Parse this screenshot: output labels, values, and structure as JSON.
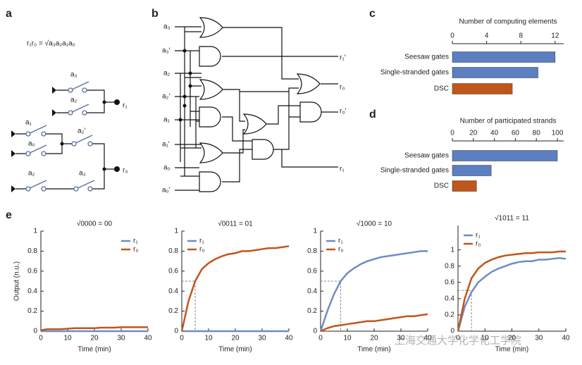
{
  "panel_labels": [
    "a",
    "b",
    "c",
    "d",
    "e"
  ],
  "diagram_a": {
    "equation": "r₁r₀ = √a₃a₂a₁a₀",
    "switches": [
      "a₃",
      "a₂",
      "a₁",
      "a₂′",
      "a₀",
      "a₂",
      "a₃"
    ],
    "outputs": [
      "r₁",
      "r₀"
    ]
  },
  "diagram_b": {
    "inputs": [
      "a₃",
      "a₃′",
      "a₂",
      "a₂′",
      "a₁",
      "a₁′",
      "a₀",
      "a₀′"
    ],
    "outputs": [
      "r₁′",
      "r₀",
      "r₀′",
      "r₁"
    ]
  },
  "watermark": "上海交通大学化学化工学院",
  "chart_data": [
    {
      "type": "hbar",
      "title": "Number of computing elements",
      "categories": [
        "Seesaw gates",
        "Single-stranded gates",
        "DSC"
      ],
      "values": [
        12,
        10,
        7
      ],
      "colors": [
        "#5b7fc1",
        "#5b7fc1",
        "#c0561c"
      ],
      "xlim": [
        0,
        13
      ],
      "xticks": [
        0,
        4,
        8,
        12
      ]
    },
    {
      "type": "hbar",
      "title": "Number of participated strands",
      "categories": [
        "Seesaw gates",
        "Single-stranded gates",
        "DSC"
      ],
      "values": [
        100,
        37,
        23
      ],
      "colors": [
        "#5b7fc1",
        "#5b7fc1",
        "#c0561c"
      ],
      "xlim": [
        0,
        106
      ],
      "xticks": [
        0,
        20,
        40,
        60,
        80,
        100
      ]
    },
    {
      "type": "line",
      "title": "√0000 = 00",
      "x_label": "Time (min)",
      "y_label": "Output (n.u.)",
      "legend": "upper right",
      "x": [
        0,
        2.5,
        5,
        7.5,
        10,
        12.5,
        15,
        17.5,
        20,
        22.5,
        25,
        27.5,
        30,
        32.5,
        35,
        37.5,
        40
      ],
      "xlim": [
        0,
        40
      ],
      "xticks": [
        0,
        10,
        20,
        30,
        40
      ],
      "ylim": [
        0,
        1.0
      ],
      "yticks": [
        0,
        0.2,
        0.4,
        0.6,
        0.8,
        1.0
      ],
      "series": [
        {
          "name": "r₁",
          "color": "#6f8cc0",
          "values": [
            0,
            0,
            0,
            0,
            0,
            0,
            0,
            0,
            0,
            0,
            0,
            0,
            0,
            0,
            0,
            0,
            0
          ]
        },
        {
          "name": "r₀",
          "color": "#c0561c",
          "values": [
            0.01,
            0.02,
            0.02,
            0.02,
            0.025,
            0.03,
            0.03,
            0.03,
            0.03,
            0.035,
            0.035,
            0.035,
            0.04,
            0.04,
            0.04,
            0.04,
            0.04
          ]
        }
      ]
    },
    {
      "type": "line",
      "title": "√0011 = 01",
      "x_label": "Time (min)",
      "legend": "upper left",
      "guide": {
        "x": 5,
        "y": 0.5
      },
      "x": [
        0,
        2.5,
        5,
        7.5,
        10,
        12.5,
        15,
        17.5,
        20,
        22.5,
        25,
        27.5,
        30,
        32.5,
        35,
        37.5,
        40
      ],
      "xlim": [
        0,
        40
      ],
      "xticks": [
        0,
        10,
        20,
        30,
        40
      ],
      "ylim": [
        0,
        1.0
      ],
      "yticks": [
        0,
        0.2,
        0.4,
        0.6,
        0.8,
        1.0
      ],
      "series": [
        {
          "name": "r₁",
          "color": "#6f8cc0",
          "values": [
            0,
            0,
            0,
            0,
            0,
            0,
            0,
            0,
            0,
            0,
            0,
            0,
            0,
            0,
            0,
            0,
            0
          ]
        },
        {
          "name": "r₀",
          "color": "#c0561c",
          "values": [
            0,
            0.3,
            0.5,
            0.62,
            0.68,
            0.72,
            0.75,
            0.77,
            0.78,
            0.8,
            0.8,
            0.81,
            0.82,
            0.83,
            0.83,
            0.84,
            0.85
          ]
        }
      ]
    },
    {
      "type": "line",
      "title": "√1000 = 10",
      "x_label": "Time (min)",
      "legend": "upper left",
      "guide": {
        "x": 7.5,
        "y": 0.5
      },
      "x": [
        0,
        2.5,
        5,
        7.5,
        10,
        12.5,
        15,
        17.5,
        20,
        22.5,
        25,
        27.5,
        30,
        32.5,
        35,
        37.5,
        40
      ],
      "xlim": [
        0,
        40
      ],
      "xticks": [
        0,
        10,
        20,
        30,
        40
      ],
      "ylim": [
        0,
        1.0
      ],
      "yticks": [
        0,
        0.2,
        0.4,
        0.6,
        0.8,
        1.0
      ],
      "series": [
        {
          "name": "r₁",
          "color": "#6f8cc0",
          "values": [
            0,
            0.2,
            0.37,
            0.5,
            0.58,
            0.63,
            0.67,
            0.7,
            0.72,
            0.74,
            0.75,
            0.76,
            0.77,
            0.78,
            0.79,
            0.8,
            0.8
          ]
        },
        {
          "name": "r₀",
          "color": "#c0561c",
          "values": [
            0,
            0.03,
            0.05,
            0.06,
            0.07,
            0.08,
            0.09,
            0.1,
            0.1,
            0.11,
            0.12,
            0.13,
            0.14,
            0.15,
            0.15,
            0.16,
            0.17
          ]
        }
      ]
    },
    {
      "type": "line",
      "title": "√1011 = 11",
      "x_label": "Time (min)",
      "legend": "upper left",
      "guide": {
        "x": 5,
        "y": 0.5
      },
      "x": [
        0,
        2.5,
        5,
        7.5,
        10,
        12.5,
        15,
        17.5,
        20,
        22.5,
        25,
        27.5,
        30,
        32.5,
        35,
        37.5,
        40
      ],
      "xlim": [
        0,
        40
      ],
      "xticks": [
        0,
        10,
        20,
        30,
        40
      ],
      "ylim": [
        0,
        1.3
      ],
      "yticks": [
        0,
        0.2,
        0.4,
        0.6,
        0.8,
        1.0
      ],
      "series": [
        {
          "name": "r₁",
          "color": "#6f8cc0",
          "values": [
            0,
            0.3,
            0.48,
            0.6,
            0.67,
            0.73,
            0.77,
            0.8,
            0.83,
            0.85,
            0.86,
            0.86,
            0.88,
            0.88,
            0.89,
            0.9,
            0.89
          ]
        },
        {
          "name": "r₀",
          "color": "#c0561c",
          "values": [
            0,
            0.4,
            0.65,
            0.77,
            0.84,
            0.88,
            0.91,
            0.93,
            0.94,
            0.95,
            0.96,
            0.96,
            0.97,
            0.97,
            0.97,
            0.98,
            0.98
          ]
        }
      ]
    }
  ]
}
